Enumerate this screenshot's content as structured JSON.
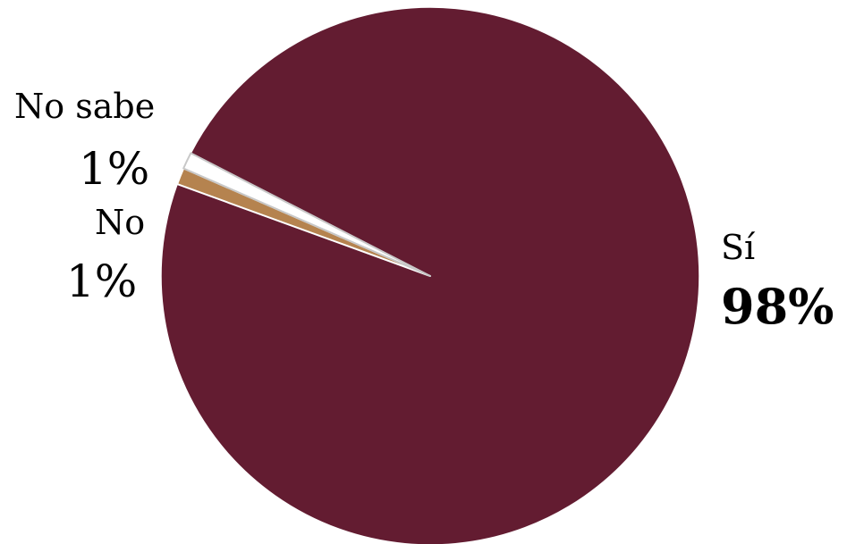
{
  "chart_data": {
    "type": "pie",
    "slices": [
      {
        "label": "Sí",
        "value": 98,
        "display": "98%",
        "color": "#631c31"
      },
      {
        "label": "No",
        "value": 1,
        "display": "1%",
        "color": "#b5834f"
      },
      {
        "label": "No sabe",
        "value": 1,
        "display": "1%",
        "color": "#ffffff"
      }
    ]
  }
}
